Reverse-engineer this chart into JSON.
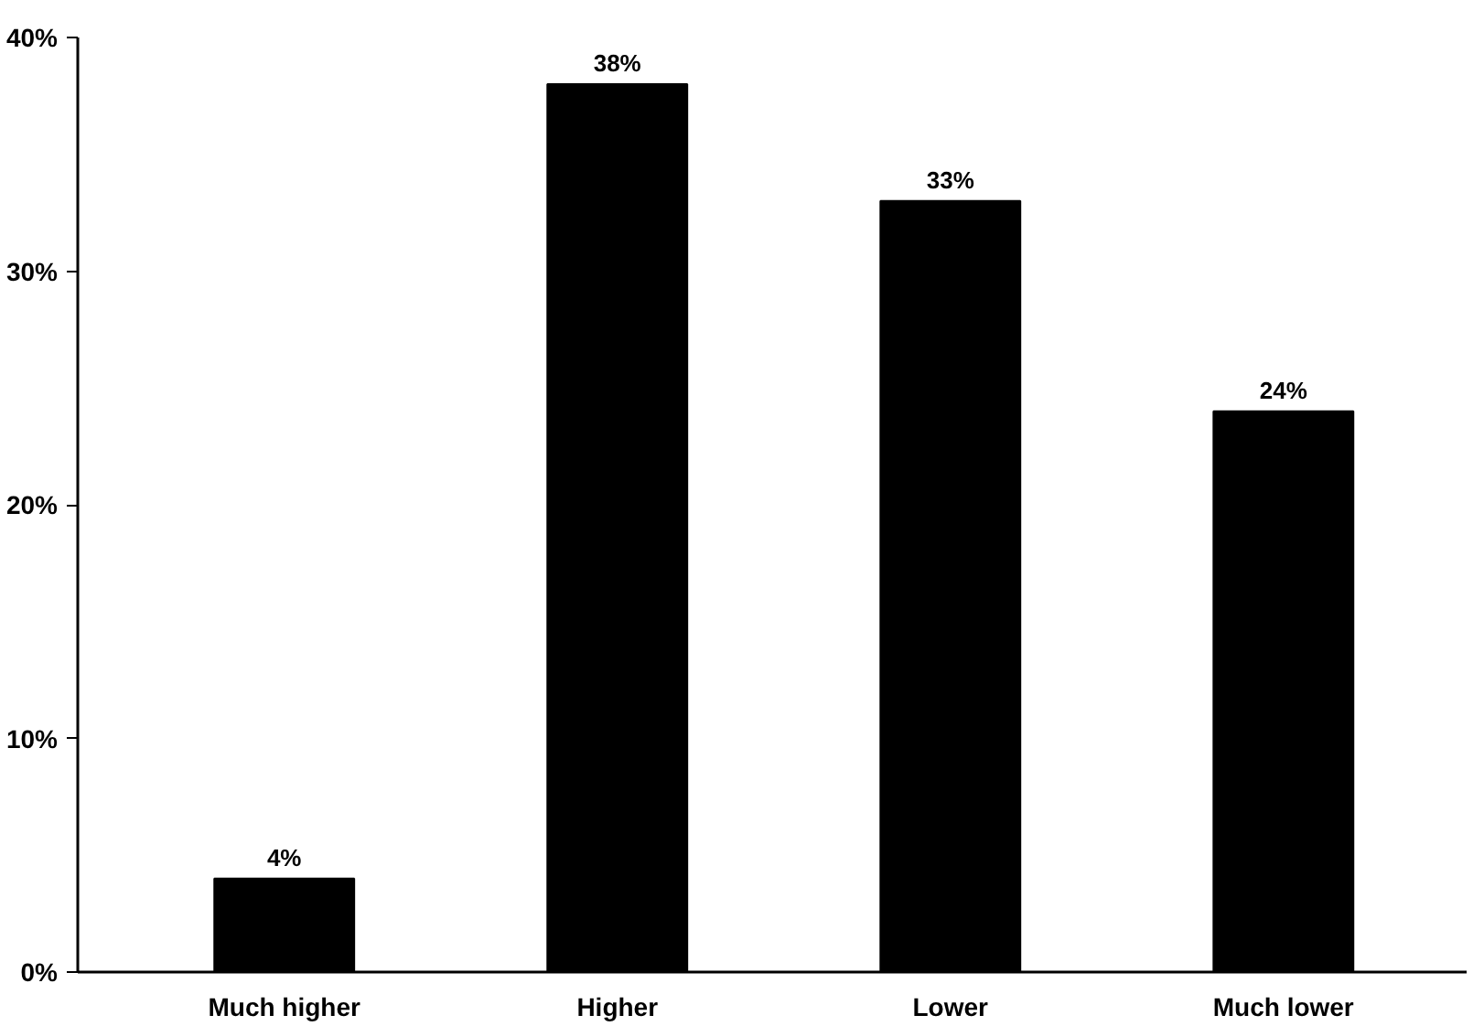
{
  "chart_data": {
    "type": "bar",
    "categories": [
      "Much higher",
      "Higher",
      "Lower",
      "Much lower"
    ],
    "values": [
      4,
      38,
      33,
      24
    ],
    "color": "#000000",
    "value_labels": [
      "4%",
      "38%",
      "33%",
      "24%"
    ],
    "ylim": [
      0,
      40
    ],
    "yticks": [
      {
        "value": 0,
        "label": "0%"
      },
      {
        "value": 10,
        "label": "10%"
      },
      {
        "value": 20,
        "label": "20%"
      },
      {
        "value": 30,
        "label": "30%"
      },
      {
        "value": 40,
        "label": "40%"
      }
    ],
    "grid": false
  }
}
